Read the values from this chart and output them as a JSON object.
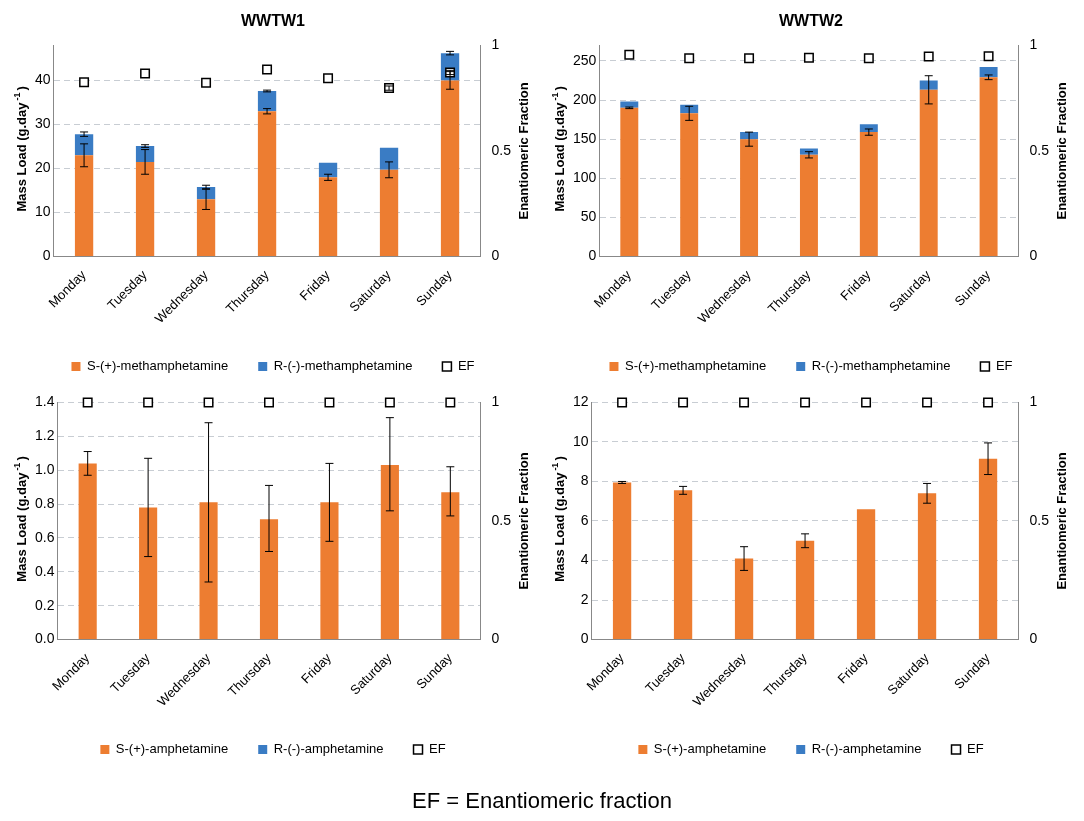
{
  "chart_data": [
    {
      "type": "bar",
      "title": "WWTW1",
      "ylabel": "Mass Load (g.day$^{-1}$)",
      "y2label": "Enantiomeric Fraction",
      "categories": [
        "Monday",
        "Tuesday",
        "Wednesday",
        "Thursday",
        "Friday",
        "Saturday",
        "Sunday"
      ],
      "stacked": true,
      "ylim": [
        0,
        48
      ],
      "yticks": [
        0,
        10,
        20,
        30,
        40
      ],
      "y2lim": [
        0,
        1
      ],
      "y2ticks": [
        0,
        0.5,
        1
      ],
      "grid": "y",
      "legend": "bottom",
      "marker": "square",
      "series": [
        {
          "name": "S-(+)-methamphetamine",
          "color": "#ed7d31",
          "values": [
            23,
            21.5,
            13,
            33,
            18,
            19.7,
            40
          ],
          "errors": [
            2.6,
            2.8,
            2.3,
            0.6,
            0.7,
            1.8,
            2
          ]
        },
        {
          "name": "R-(-)-methamphetamine",
          "color": "#3a7cc4",
          "values": [
            4.8,
            3.6,
            2.8,
            4.6,
            3.3,
            5,
            6.2
          ],
          "errors": [
            0.5,
            0.3,
            0.4,
            0.2,
            null,
            null,
            0.4
          ]
        },
        {
          "name": "EF",
          "type": "scatter",
          "axis": "y2",
          "color": "#000000",
          "values": [
            0.825,
            0.866,
            0.822,
            0.885,
            0.844,
            0.797,
            0.871
          ],
          "errors": [
            null,
            null,
            null,
            null,
            null,
            0.01,
            0.01
          ]
        }
      ]
    },
    {
      "type": "bar",
      "title": "WWTW2",
      "ylabel": "Mass Load (g.day$^{-1}$)",
      "y2label": "Enantiomeric Fraction",
      "categories": [
        "Monday",
        "Tuesday",
        "Wednesday",
        "Thursday",
        "Friday",
        "Saturday",
        "Sunday"
      ],
      "stacked": true,
      "ylim": [
        0,
        270
      ],
      "yticks": [
        0,
        50,
        100,
        150,
        200,
        250
      ],
      "y2lim": [
        0,
        1
      ],
      "y2ticks": [
        0,
        0.5,
        1
      ],
      "grid": "y",
      "legend": "bottom",
      "marker": "square",
      "series": [
        {
          "name": "S-(+)-methamphetamine",
          "color": "#ed7d31",
          "values": [
            190,
            183,
            150,
            130,
            159,
            213,
            229
          ],
          "errors": [
            1,
            9,
            9,
            4,
            4,
            18,
            3
          ]
        },
        {
          "name": "R-(-)-methamphetamine",
          "color": "#3a7cc4",
          "values": [
            8,
            11,
            9,
            8,
            10,
            12,
            13
          ],
          "errors": [
            null,
            null,
            null,
            null,
            null,
            null,
            null
          ]
        },
        {
          "name": "EF",
          "type": "scatter",
          "axis": "y2",
          "color": "#000000",
          "values": [
            0.955,
            0.938,
            0.938,
            0.941,
            0.938,
            0.946,
            0.948
          ]
        }
      ]
    },
    {
      "type": "bar",
      "ylabel": "Mass Load (g.day$^{-1}$)",
      "y2label": "Enantiomeric Fraction",
      "categories": [
        "Monday",
        "Tuesday",
        "Wednesday",
        "Thursday",
        "Friday",
        "Saturday",
        "Sunday"
      ],
      "stacked": true,
      "ylim": [
        0,
        1.4
      ],
      "yticks": [
        {
          "value": 0,
          "label": "0.0"
        },
        {
          "value": 0.2,
          "label": "0.2"
        },
        {
          "value": 0.4,
          "label": "0.4"
        },
        {
          "value": 0.6,
          "label": "0.6"
        },
        {
          "value": 0.8,
          "label": "0.8"
        },
        {
          "value": 1,
          "label": "1.0"
        },
        {
          "value": 1.2,
          "label": "1.2"
        },
        {
          "value": 1.4,
          "label": "1.4"
        }
      ],
      "y2lim": [
        0,
        1
      ],
      "y2ticks": [
        0,
        0.5,
        1
      ],
      "grid": "y",
      "legend": "bottom",
      "marker": "square",
      "series": [
        {
          "name": "S-(+)-amphetamine",
          "color": "#ed7d31",
          "values": [
            1.04,
            0.78,
            0.81,
            0.71,
            0.81,
            1.03,
            0.87
          ],
          "errors": [
            [
              0.97,
              1.11
            ],
            [
              0.49,
              1.07
            ],
            [
              0.34,
              1.28
            ],
            [
              0.52,
              0.91
            ],
            [
              0.58,
              1.04
            ],
            [
              0.76,
              1.31
            ],
            [
              0.73,
              1.02
            ]
          ]
        },
        {
          "name": "R-(-)-amphetamine",
          "color": "#3a7cc4",
          "values": [
            0,
            0,
            0,
            0,
            0,
            0,
            0
          ]
        },
        {
          "name": "EF",
          "type": "scatter",
          "axis": "y2",
          "color": "#000000",
          "values": [
            1,
            1,
            1,
            1,
            1,
            1,
            1
          ]
        }
      ]
    },
    {
      "type": "bar",
      "ylabel": "Mass Load (g.day$^{-1}$)",
      "y2label": "Enantiomeric Fraction",
      "categories": [
        "Monday",
        "Tuesday",
        "Wednesday",
        "Thursday",
        "Friday",
        "Saturday",
        "Sunday"
      ],
      "stacked": true,
      "ylim": [
        0,
        12
      ],
      "yticks": [
        0,
        2,
        4,
        6,
        8,
        10,
        12
      ],
      "y2lim": [
        0,
        1
      ],
      "y2ticks": [
        0,
        0.5,
        1
      ],
      "grid": "y",
      "legend": "bottom",
      "marker": "square",
      "annotations": [
        "EF = Enantiomeric fraction"
      ],
      "series": [
        {
          "name": "S-(+)-amphetamine",
          "color": "#ed7d31",
          "values": [
            7.95,
            7.55,
            4.1,
            5,
            6.6,
            7.4,
            9.15
          ],
          "errors": [
            0.05,
            0.2,
            0.6,
            0.35,
            null,
            0.5,
            0.8
          ]
        },
        {
          "name": "R-(-)-amphetamine",
          "color": "#3a7cc4",
          "values": [
            0,
            0,
            0,
            0,
            0,
            0,
            0
          ]
        },
        {
          "name": "EF",
          "type": "scatter",
          "axis": "y2",
          "color": "#000000",
          "values": [
            1,
            1,
            1,
            1,
            1,
            1,
            1
          ]
        }
      ]
    }
  ]
}
